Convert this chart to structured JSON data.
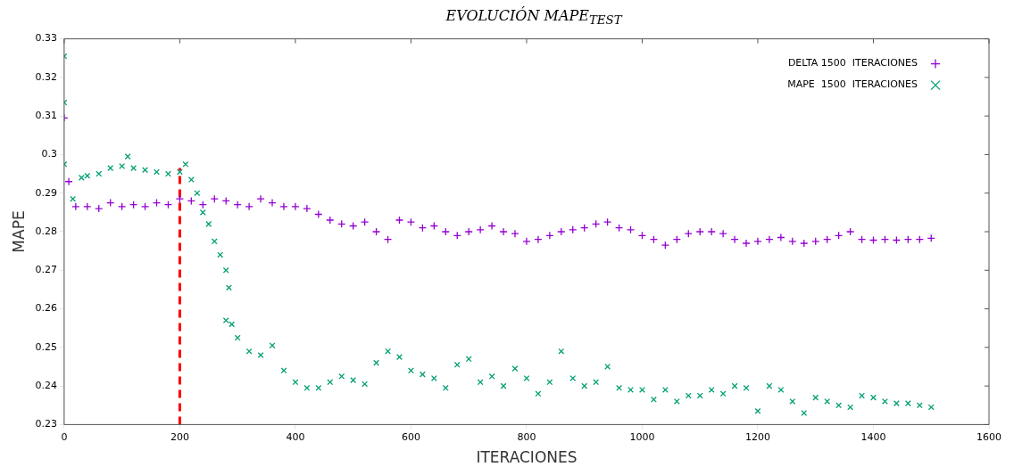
{
  "chart_data": {
    "type": "scatter",
    "title": "EVOLUCIÓN MAPE$_{TEST}$",
    "xlabel": "ITERACIONES",
    "ylabel": "MAPE",
    "xlim": [
      0,
      1600
    ],
    "xticks": [
      0,
      200,
      400,
      600,
      800,
      1000,
      1200,
      1400,
      1600
    ],
    "ylim": [
      0.23,
      0.33
    ],
    "yticks": [
      0.23,
      0.24,
      0.25,
      0.26,
      0.27,
      0.28,
      0.29,
      0.3,
      0.31,
      0.32,
      0.33
    ],
    "grid": false,
    "legend": "top right",
    "series": [
      {
        "name": "DELTA 1500  ITERACIONES",
        "color": "#9400d3",
        "marker": "cross",
        "x": [
          0,
          8,
          20,
          40,
          60,
          80,
          100,
          120,
          140,
          160,
          180,
          200,
          220,
          240,
          260,
          280,
          300,
          320,
          340,
          360,
          380,
          400,
          420,
          440,
          460,
          480,
          500,
          520,
          540,
          560,
          580,
          600,
          620,
          640,
          660,
          680,
          700,
          720,
          740,
          760,
          780,
          800,
          820,
          840,
          860,
          880,
          900,
          920,
          940,
          960,
          980,
          1000,
          1020,
          1040,
          1060,
          1080,
          1100,
          1120,
          1140,
          1160,
          1180,
          1200,
          1220,
          1240,
          1260,
          1280,
          1300,
          1320,
          1340,
          1360,
          1380,
          1400,
          1420,
          1440,
          1460,
          1480,
          1500
        ],
        "values": [
          0.3095,
          0.293,
          0.2865,
          0.2865,
          0.286,
          0.2875,
          0.2865,
          0.287,
          0.2865,
          0.2875,
          0.287,
          0.2885,
          0.288,
          0.287,
          0.2885,
          0.288,
          0.287,
          0.2865,
          0.2885,
          0.2875,
          0.2865,
          0.2865,
          0.286,
          0.2845,
          0.283,
          0.282,
          0.2815,
          0.2825,
          0.28,
          0.278,
          0.283,
          0.2825,
          0.281,
          0.2815,
          0.28,
          0.279,
          0.28,
          0.2805,
          0.2815,
          0.28,
          0.2795,
          0.2775,
          0.278,
          0.279,
          0.28,
          0.2805,
          0.281,
          0.282,
          0.2825,
          0.281,
          0.2805,
          0.279,
          0.278,
          0.2765,
          0.278,
          0.2795,
          0.28,
          0.28,
          0.2795,
          0.278,
          0.277,
          0.2775,
          0.278,
          0.2785,
          0.2775,
          0.277,
          0.2775,
          0.278,
          0.279,
          0.28,
          0.278,
          0.2778,
          0.278,
          0.2778,
          0.278,
          0.278,
          0.2783
        ]
      },
      {
        "name": "MAPE  1500  ITERACIONES",
        "color": "#009e73",
        "marker": "x",
        "x": [
          0,
          0,
          0,
          15,
          30,
          40,
          60,
          80,
          100,
          110,
          120,
          140,
          160,
          180,
          200,
          210,
          220,
          230,
          240,
          250,
          260,
          270,
          280,
          285,
          280,
          290,
          300,
          320,
          340,
          360,
          380,
          400,
          420,
          440,
          460,
          480,
          500,
          520,
          540,
          560,
          580,
          600,
          620,
          640,
          660,
          680,
          700,
          720,
          740,
          760,
          780,
          800,
          820,
          840,
          860,
          880,
          900,
          920,
          940,
          960,
          980,
          1000,
          1020,
          1040,
          1060,
          1080,
          1100,
          1120,
          1140,
          1160,
          1180,
          1200,
          1220,
          1240,
          1260,
          1280,
          1300,
          1320,
          1340,
          1360,
          1380,
          1400,
          1420,
          1440,
          1460,
          1480,
          1500
        ],
        "values": [
          0.3255,
          0.3135,
          0.2975,
          0.2885,
          0.294,
          0.2945,
          0.295,
          0.2965,
          0.297,
          0.2995,
          0.2965,
          0.296,
          0.2955,
          0.295,
          0.2955,
          0.2975,
          0.2935,
          0.29,
          0.285,
          0.282,
          0.2775,
          0.274,
          0.27,
          0.2655,
          0.257,
          0.256,
          0.2525,
          0.249,
          0.248,
          0.2505,
          0.244,
          0.241,
          0.2395,
          0.2395,
          0.241,
          0.2425,
          0.2415,
          0.2405,
          0.246,
          0.249,
          0.2475,
          0.244,
          0.243,
          0.242,
          0.2395,
          0.2455,
          0.247,
          0.241,
          0.2425,
          0.24,
          0.2445,
          0.242,
          0.238,
          0.241,
          0.249,
          0.242,
          0.24,
          0.241,
          0.245,
          0.2395,
          0.239,
          0.239,
          0.2365,
          0.239,
          0.236,
          0.2375,
          0.2375,
          0.239,
          0.238,
          0.24,
          0.2395,
          0.2335,
          0.24,
          0.239,
          0.236,
          0.233,
          0.237,
          0.236,
          0.235,
          0.2345,
          0.2375,
          0.237,
          0.236,
          0.2355,
          0.2355,
          0.235,
          0.2345
        ]
      },
      {
        "type": "line",
        "color": "#ff0000",
        "line_style": "dashed",
        "marker": "none",
        "x": [
          200,
          200
        ],
        "values": [
          0.23,
          0.2965
        ]
      }
    ]
  }
}
